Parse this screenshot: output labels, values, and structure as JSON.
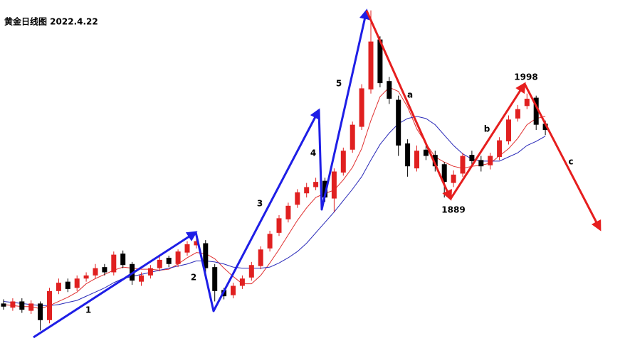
{
  "chart_data": {
    "type": "candlestick",
    "title": "黄金日线图 2022.4.22",
    "ylim": [
      1750,
      2080
    ],
    "up_color": "#e02020",
    "down_color": "#000000",
    "open": [
      1788,
      1784,
      1790,
      1781,
      1788,
      1772,
      1800,
      1809,
      1803,
      1812,
      1815,
      1823,
      1818,
      1836,
      1826,
      1809,
      1815,
      1822,
      1832,
      1826,
      1837,
      1844,
      1846,
      1823,
      1801,
      1796,
      1805,
      1813,
      1824,
      1841,
      1856,
      1869,
      1883,
      1894,
      1900,
      1906,
      1889,
      1914,
      1936,
      1958,
      1994,
      2042,
      2002,
      1984,
      1942,
      1918,
      1936,
      1931,
      1922,
      1904,
      1913,
      1931,
      1926,
      1921,
      1929,
      1944,
      1966,
      1978,
      1986,
      1961
    ],
    "high": [
      1792,
      1793,
      1793,
      1791,
      1790,
      1803,
      1812,
      1812,
      1815,
      1818,
      1826,
      1826,
      1838,
      1839,
      1828,
      1818,
      1825,
      1833,
      1834,
      1840,
      1848,
      1851,
      1849,
      1826,
      1803,
      1808,
      1815,
      1828,
      1843,
      1858,
      1873,
      1885,
      1898,
      1904,
      1909,
      1909,
      1918,
      1938,
      1963,
      1999,
      2070,
      2045,
      2006,
      1988,
      1946,
      1940,
      1940,
      1935,
      1924,
      1916,
      1933,
      1935,
      1930,
      1933,
      1948,
      1969,
      1979,
      1990,
      1988,
      1964
    ],
    "low": [
      1782,
      1781,
      1779,
      1778,
      1762,
      1769,
      1797,
      1799,
      1800,
      1809,
      1812,
      1815,
      1815,
      1822,
      1806,
      1805,
      1812,
      1819,
      1823,
      1823,
      1834,
      1841,
      1818,
      1790,
      1792,
      1793,
      1802,
      1810,
      1821,
      1838,
      1853,
      1866,
      1880,
      1890,
      1897,
      1886,
      1876,
      1911,
      1933,
      1955,
      1990,
      1996,
      1980,
      1930,
      1910,
      1915,
      1926,
      1915,
      1890,
      1900,
      1910,
      1920,
      1915,
      1917,
      1926,
      1941,
      1963,
      1975,
      1955,
      1950
    ],
    "close": [
      1785,
      1790,
      1782,
      1788,
      1772,
      1800,
      1808,
      1802,
      1812,
      1815,
      1822,
      1818,
      1835,
      1825,
      1810,
      1815,
      1822,
      1830,
      1826,
      1838,
      1845,
      1848,
      1822,
      1800,
      1795,
      1805,
      1812,
      1825,
      1840,
      1855,
      1870,
      1882,
      1895,
      1900,
      1905,
      1890,
      1915,
      1935,
      1960,
      1995,
      2040,
      2000,
      1985,
      1940,
      1920,
      1935,
      1930,
      1920,
      1905,
      1912,
      1930,
      1925,
      1920,
      1930,
      1945,
      1965,
      1975,
      1985,
      1960,
      1955
    ],
    "ma": [
      {
        "color": "#e03030",
        "values": [
          1787,
          1786,
          1785,
          1785,
          1783,
          1786,
          1790,
          1794,
          1799,
          1807,
          1812,
          1816,
          1820,
          1823,
          1822,
          1821,
          1821,
          1820,
          1821,
          1826,
          1832,
          1837,
          1836,
          1831,
          1822,
          1814,
          1807,
          1807,
          1815,
          1827,
          1840,
          1854,
          1868,
          1880,
          1890,
          1894,
          1897,
          1907,
          1919,
          1937,
          1964,
          1987,
          1996,
          1992,
          1977,
          1956,
          1942,
          1929,
          1924,
          1920,
          1918,
          1920,
          1921,
          1923,
          1930,
          1937,
          1947,
          1960,
          1966,
          1968
        ]
      },
      {
        "color": "#2828b8",
        "values": [
          1790,
          1789,
          1788,
          1787,
          1786,
          1786,
          1787,
          1789,
          1791,
          1795,
          1799,
          1803,
          1808,
          1812,
          1814,
          1816,
          1818,
          1820,
          1822,
          1824,
          1826,
          1829,
          1829,
          1828,
          1826,
          1823,
          1822,
          1822,
          1822,
          1823,
          1827,
          1832,
          1838,
          1846,
          1856,
          1866,
          1876,
          1887,
          1898,
          1910,
          1926,
          1941,
          1952,
          1961,
          1966,
          1968,
          1966,
          1960,
          1950,
          1940,
          1932,
          1927,
          1925,
          1925,
          1925,
          1929,
          1933,
          1940,
          1944,
          1949
        ]
      }
    ],
    "wave_labels": [
      "1",
      "2",
      "3",
      "4",
      "5",
      "a",
      "b",
      "c"
    ],
    "price_labels": [
      1889,
      1998
    ]
  }
}
